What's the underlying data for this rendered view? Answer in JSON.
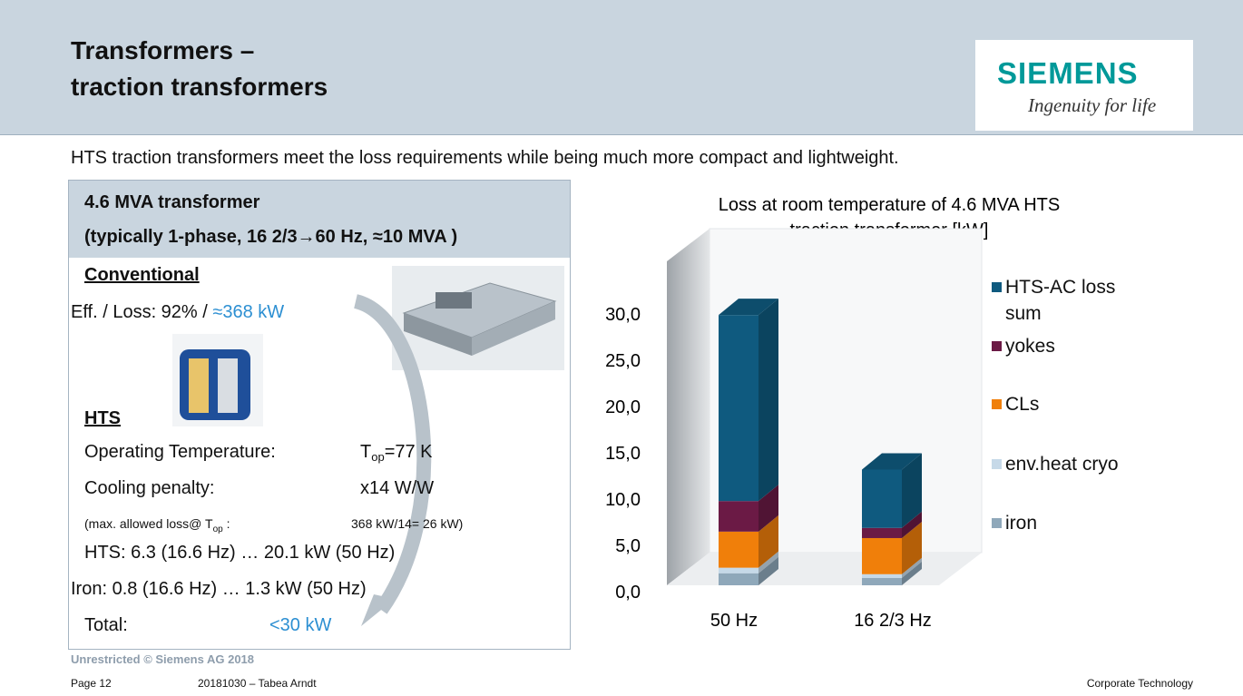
{
  "header": {
    "title_lines": [
      "Transformers –",
      "traction transformers"
    ],
    "logo": "SIEMENS",
    "tagline": "Ingenuity for life"
  },
  "summary": "HTS traction transformers meet the loss requirements while being much more compact and lightweight.",
  "box": {
    "heading_lines": [
      "4.6 MVA transformer",
      "(typically 1-phase, 16 2/3→60 Hz, ≈10 MVA )"
    ],
    "conventional_heading": "Conventional",
    "conventional_label": "Eff. / Loss: 92% / ",
    "conventional_value": "≈368 kW",
    "hts_heading": "HTS",
    "op_temp_label": "Operating Temperature:",
    "op_temp_symbol": "T",
    "op_temp_sub": "op",
    "op_temp_value": "=77 K",
    "cooling_label": "Cooling penalty:",
    "cooling_value": "x14 W/W",
    "note_label": "(max. allowed loss@ T",
    "note_sub": "op",
    "note_colon": " :",
    "note_value": "368 kW/14= 26 kW)",
    "hts_line": "HTS: 6.3 (16.6 Hz) … 20.1 kW (50 Hz)",
    "iron_line": "Iron: 0.8 (16.6 Hz) … 1.3 kW (50 Hz)",
    "total_label": "Total:",
    "total_value": "<30 kW"
  },
  "footer": {
    "classification": "Unrestricted © Siemens AG 2018",
    "page": "Page 12",
    "date_author": "20181030 – Tabea Arndt",
    "department": "Corporate Technology"
  },
  "chart_data": {
    "type": "bar",
    "stacked": true,
    "title": [
      "Loss at room temperature of 4.6 MVA HTS",
      "traction  transformer [kW]"
    ],
    "categories": [
      "50 Hz",
      "16 2/3 Hz"
    ],
    "series": [
      {
        "name": "iron",
        "color": "#8fa8ba",
        "values": [
          1.3,
          0.8
        ]
      },
      {
        "name": "env.heat cryo",
        "color": "#c6d9e8",
        "values": [
          0.6,
          0.4
        ]
      },
      {
        "name": "CLs",
        "color": "#f07f0a",
        "values": [
          3.9,
          3.9
        ]
      },
      {
        "name": "yokes",
        "color": "#6b1a45",
        "values": [
          3.3,
          1.1
        ]
      },
      {
        "name": "HTS-AC loss sum",
        "color": "#0f5a7f",
        "values": [
          20.1,
          6.3
        ]
      }
    ],
    "ylim": [
      0,
      35
    ],
    "yticks": [
      {
        "value": 0,
        "label": "0,0"
      },
      {
        "value": 5,
        "label": "5,0"
      },
      {
        "value": 10,
        "label": "10,0"
      },
      {
        "value": 15,
        "label": "15,0"
      },
      {
        "value": 20,
        "label": "20,0"
      },
      {
        "value": 25,
        "label": "25,0"
      },
      {
        "value": 30,
        "label": "30,0"
      }
    ],
    "legend": "right"
  }
}
